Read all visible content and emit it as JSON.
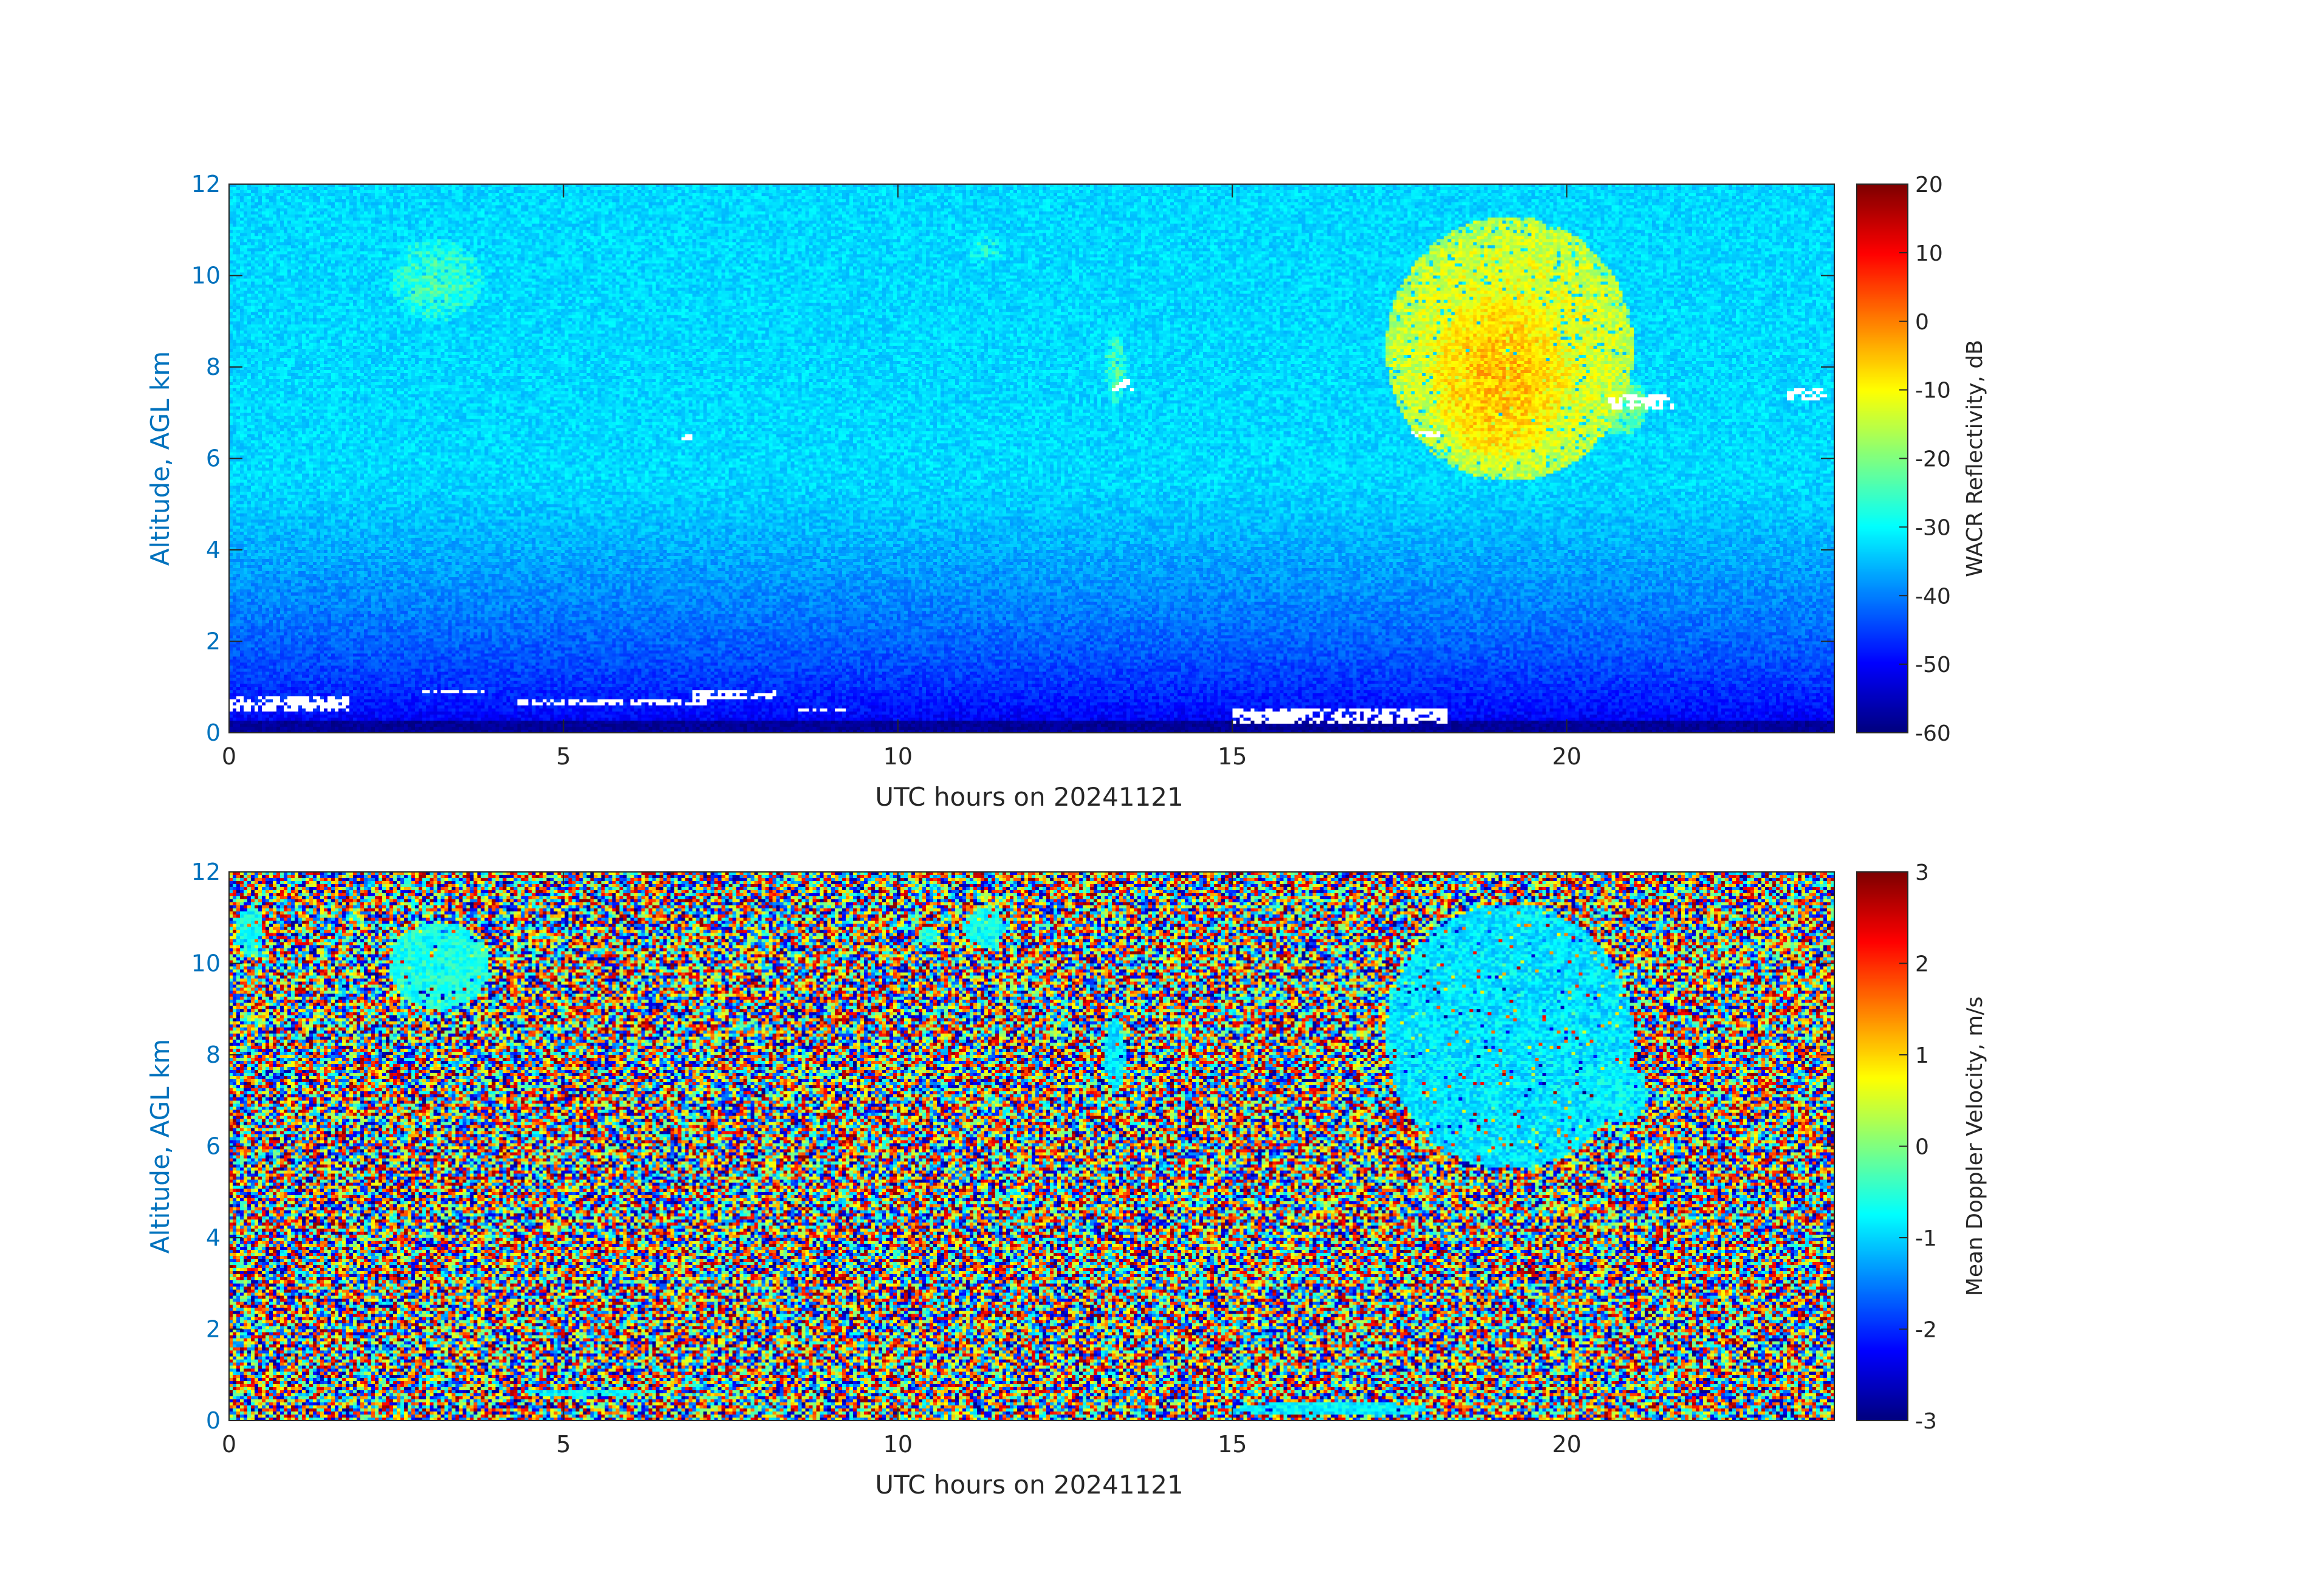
{
  "chart_data": [
    {
      "type": "heatmap",
      "xlabel": "UTC hours on 20241121",
      "ylabel": "Altitude, AGL km",
      "xlim": [
        0,
        24
      ],
      "ylim": [
        0,
        12
      ],
      "xticks": [
        0,
        5,
        10,
        15,
        20
      ],
      "yticks": [
        0,
        2,
        4,
        6,
        8,
        10,
        12
      ],
      "colorbar": {
        "label": "WACR Reflectivity, dB",
        "range": [
          -60,
          20
        ],
        "ticks": [
          -60,
          -50,
          -40,
          -30,
          -20,
          -10,
          0,
          10,
          20
        ],
        "colormap": "jet"
      },
      "background": {
        "surface": -55,
        "aloft": -33
      },
      "clouds": [
        {
          "t": [
            2.4,
            3.8
          ],
          "z": [
            9.0,
            10.8
          ],
          "value": -25
        },
        {
          "t": [
            11.0,
            11.6
          ],
          "z": [
            10.2,
            11.0
          ],
          "value": -28
        },
        {
          "t": [
            13.1,
            13.4
          ],
          "z": [
            7.2,
            8.8
          ],
          "value": -24
        },
        {
          "t": [
            17.3,
            21.0
          ],
          "z": [
            5.5,
            11.3
          ],
          "value": -10
        },
        {
          "t": [
            18.0,
            20.0
          ],
          "z": [
            6.0,
            9.5
          ],
          "value": -5
        },
        {
          "t": [
            20.4,
            21.2
          ],
          "z": [
            6.5,
            7.8
          ],
          "value": -20
        }
      ],
      "clutter_white": [
        {
          "t": [
            0.0,
            1.8
          ],
          "z": [
            0.45,
            0.8
          ]
        },
        {
          "t": [
            2.9,
            3.9
          ],
          "z": [
            0.85,
            0.95
          ]
        },
        {
          "t": [
            4.3,
            7.2
          ],
          "z": [
            0.6,
            0.75
          ]
        },
        {
          "t": [
            6.9,
            8.2
          ],
          "z": [
            0.75,
            0.9
          ]
        },
        {
          "t": [
            8.5,
            9.2
          ],
          "z": [
            0.45,
            0.55
          ]
        },
        {
          "t": [
            15.0,
            18.2
          ],
          "z": [
            0.2,
            0.5
          ]
        },
        {
          "t": [
            6.75,
            6.95
          ],
          "z": [
            6.4,
            6.5
          ]
        },
        {
          "t": [
            13.2,
            13.5
          ],
          "z": [
            7.5,
            7.7
          ]
        },
        {
          "t": [
            17.7,
            18.1
          ],
          "z": [
            6.5,
            6.6
          ]
        },
        {
          "t": [
            20.6,
            21.6
          ],
          "z": [
            7.1,
            7.4
          ]
        },
        {
          "t": [
            23.3,
            23.9
          ],
          "z": [
            7.3,
            7.5
          ]
        }
      ]
    },
    {
      "type": "heatmap",
      "xlabel": "UTC hours on 20241121",
      "ylabel": "Altitude, AGL km",
      "xlim": [
        0,
        24
      ],
      "ylim": [
        0,
        12
      ],
      "xticks": [
        0,
        5,
        10,
        15,
        20
      ],
      "yticks": [
        0,
        2,
        4,
        6,
        8,
        10,
        12
      ],
      "colorbar": {
        "label": "Mean Doppler Velocity, m/s",
        "range": [
          -3,
          3
        ],
        "ticks": [
          -3,
          -2,
          -1,
          0,
          1,
          2,
          3
        ],
        "colormap": "jet"
      },
      "background": "noise",
      "clouds": [
        {
          "t": [
            0.1,
            0.5
          ],
          "z": [
            10.2,
            11.2
          ],
          "value": -0.7
        },
        {
          "t": [
            2.4,
            3.9
          ],
          "z": [
            9.0,
            10.9
          ],
          "value": -0.6
        },
        {
          "t": [
            10.3,
            10.6
          ],
          "z": [
            10.4,
            10.8
          ],
          "value": -0.6
        },
        {
          "t": [
            11.0,
            11.6
          ],
          "z": [
            10.3,
            11.2
          ],
          "value": -0.7
        },
        {
          "t": [
            13.1,
            13.4
          ],
          "z": [
            7.2,
            8.8
          ],
          "value": -0.9
        },
        {
          "t": [
            17.3,
            21.0
          ],
          "z": [
            5.5,
            11.3
          ],
          "value": -0.9
        },
        {
          "t": [
            20.4,
            21.2
          ],
          "z": [
            6.5,
            7.8
          ],
          "value": -0.8
        },
        {
          "t": [
            15.0,
            18.0
          ],
          "z": [
            0.1,
            0.4
          ],
          "value": -0.8
        },
        {
          "t": [
            4.3,
            6.4
          ],
          "z": [
            0.55,
            0.7
          ],
          "value": -0.7
        }
      ]
    }
  ]
}
